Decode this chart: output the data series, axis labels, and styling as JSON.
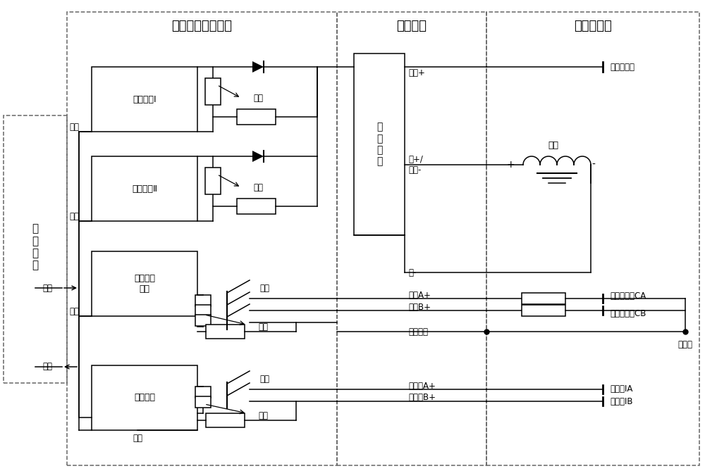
{
  "fig_width": 10.0,
  "fig_height": 6.69,
  "bg": "#ffffff",
  "lc": "#000000",
  "dc": "#666666",
  "lw": 1.1,
  "sections": {
    "hppu_label": "霍尔电源处理单元",
    "filter_label": "滤波模块",
    "thruster_label": "霍尔推力器",
    "ctrl_label": "控\n制\n单\n元"
  },
  "boxes": {
    "anode1": "阳极电源Ⅰ",
    "anode2": "阳极电源Ⅱ",
    "cathode_heat": "阴极加热\n电源",
    "ignition": "点火电源",
    "filter_circuit": "滤\n波\n电\n路"
  },
  "labels": {
    "enable": "使能",
    "sample": "采样",
    "switch": "开关",
    "control": "控制",
    "anode_plus": "阳极+",
    "mag_anode": "磁+/\n阳极-",
    "mag_minus": "磁-",
    "thruster_anode": "推力器阳极",
    "magnet": "磁铁",
    "cathodeA": "阴极A+",
    "cathodeB": "阴极B+",
    "common_neg": "公共负端",
    "common": "公共端",
    "heaterCA": "阴极加热器CA",
    "heaterCB": "阴极加热器CB",
    "ignA_plus": "点火极A+",
    "ignB_plus": "点火极B+",
    "ignIA": "点火极IA",
    "ignIB": "点火极IB",
    "mag_plus": "+"
  }
}
